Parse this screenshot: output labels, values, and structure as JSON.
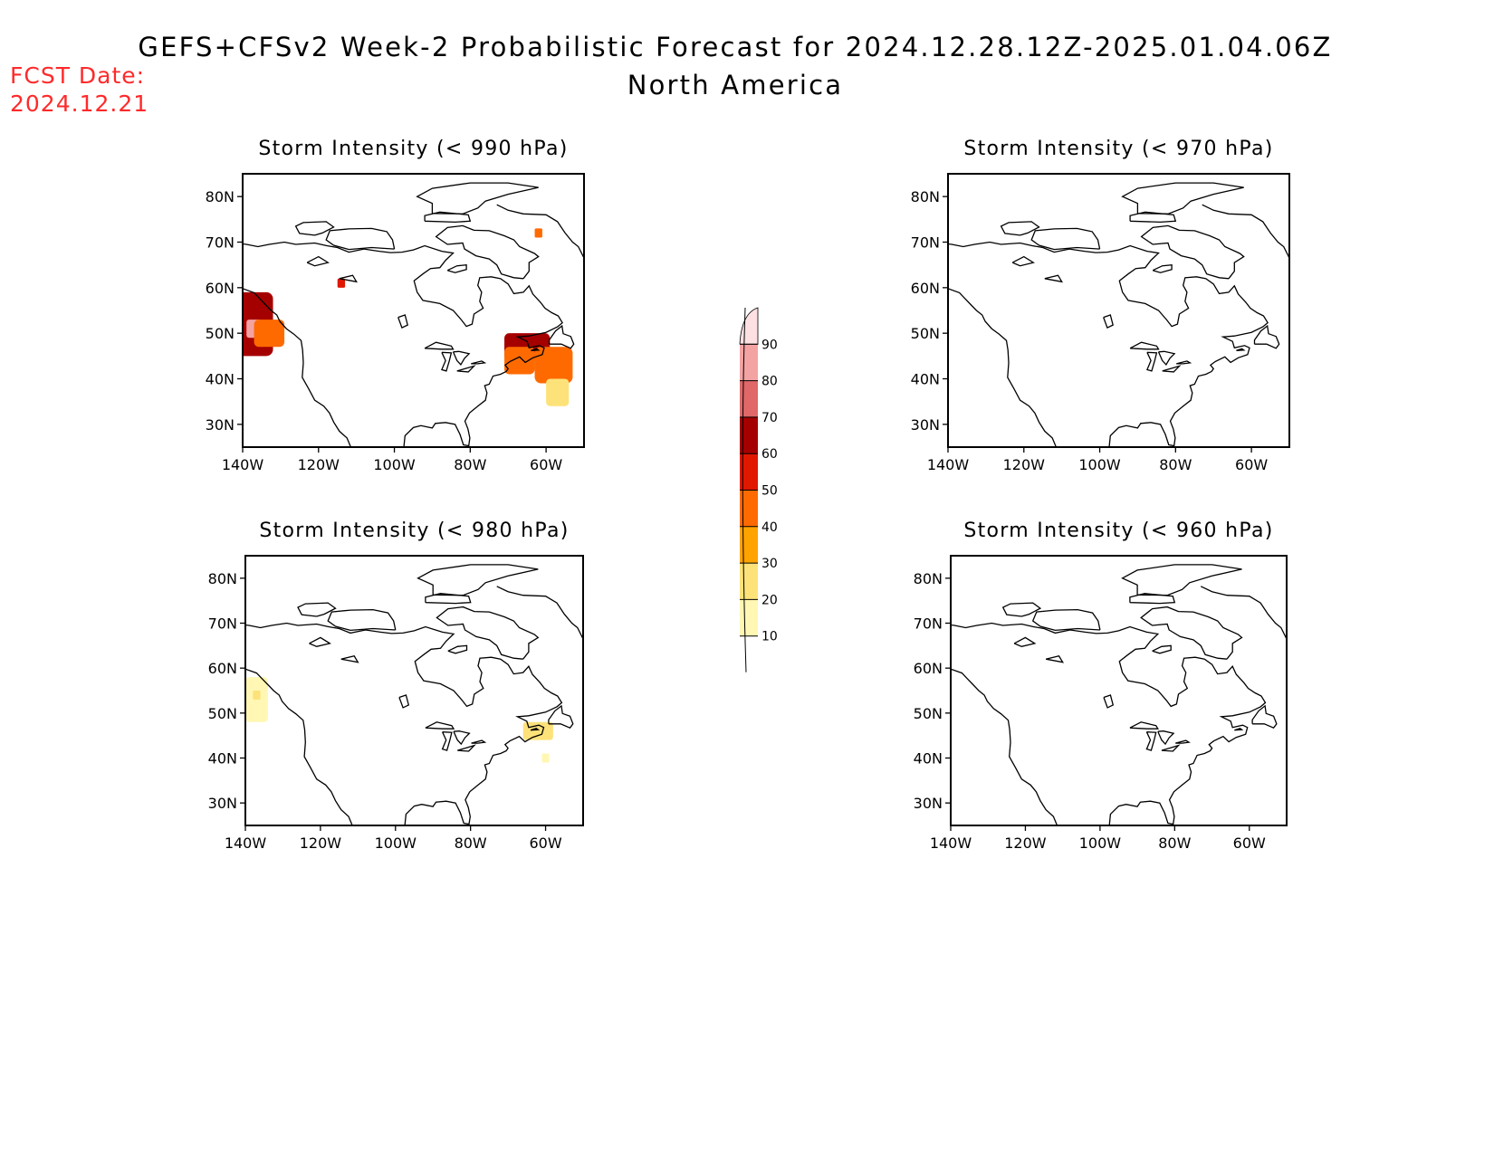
{
  "header": {
    "title": "GEFS+CFSv2 Week-2 Probabilistic Forecast for 2024.12.28.12Z-2025.01.04.06Z",
    "subtitle": "North America",
    "fcst_label": "FCST Date:",
    "fcst_date": "2024.12.21"
  },
  "colors": {
    "text": "#000000",
    "fcst": "#ff2a2a",
    "coast": "#000000"
  },
  "axes": {
    "lat_labels": [
      "80N",
      "70N",
      "60N",
      "50N",
      "40N",
      "30N"
    ],
    "lat_values": [
      80,
      70,
      60,
      50,
      40,
      30
    ],
    "lon_labels": [
      "140W",
      "120W",
      "100W",
      "80W",
      "60W"
    ],
    "lon_values": [
      -140,
      -120,
      -100,
      -80,
      -60
    ],
    "lon_range": [
      -140,
      -50
    ],
    "lat_range": [
      25,
      85
    ]
  },
  "panels": [
    {
      "id": "p990",
      "title": "Storm Intensity (< 990 hPa)",
      "blobs": [
        {
          "lon": -137,
          "lat": 52,
          "rlon": 5,
          "rlat": 7,
          "level": 60
        },
        {
          "lon": -137,
          "lat": 51,
          "rlon": 2,
          "rlat": 2,
          "level": 80
        },
        {
          "lon": -133,
          "lat": 50,
          "rlon": 4,
          "rlat": 3,
          "level": 40
        },
        {
          "lon": -65,
          "lat": 47,
          "rlon": 6,
          "rlat": 3,
          "level": 60
        },
        {
          "lon": -67,
          "lat": 44,
          "rlon": 4,
          "rlat": 3,
          "level": 40
        },
        {
          "lon": -58,
          "lat": 43,
          "rlon": 5,
          "rlat": 4,
          "level": 40
        },
        {
          "lon": -57,
          "lat": 37,
          "rlon": 3,
          "rlat": 3,
          "level": 20
        },
        {
          "lon": -62,
          "lat": 72,
          "rlon": 1,
          "rlat": 1,
          "level": 40
        },
        {
          "lon": -114,
          "lat": 61,
          "rlon": 1,
          "rlat": 1,
          "level": 50
        }
      ]
    },
    {
      "id": "p970",
      "title": "Storm Intensity (< 970 hPa)",
      "blobs": []
    },
    {
      "id": "p980",
      "title": "Storm Intensity (< 980 hPa)",
      "blobs": [
        {
          "lon": -137,
          "lat": 53,
          "rlon": 3,
          "rlat": 5,
          "level": 10
        },
        {
          "lon": -137,
          "lat": 54,
          "rlon": 1,
          "rlat": 1,
          "level": 20
        },
        {
          "lon": -62,
          "lat": 46,
          "rlon": 4,
          "rlat": 2,
          "level": 20
        },
        {
          "lon": -60,
          "lat": 40,
          "rlon": 1,
          "rlat": 1,
          "level": 10
        }
      ]
    },
    {
      "id": "p960",
      "title": "Storm Intensity (< 960 hPa)",
      "blobs": []
    }
  ],
  "colorbar": {
    "labels": [
      "10",
      "20",
      "30",
      "40",
      "50",
      "60",
      "70",
      "80",
      "90"
    ],
    "levels": [
      10,
      20,
      30,
      40,
      50,
      60,
      70,
      80,
      90
    ],
    "colors": [
      "#fff7b3",
      "#fde27a",
      "#ffa300",
      "#ff6a00",
      "#e01800",
      "#a50000",
      "#e06868",
      "#f4a3a3",
      "#fde0e2"
    ]
  }
}
